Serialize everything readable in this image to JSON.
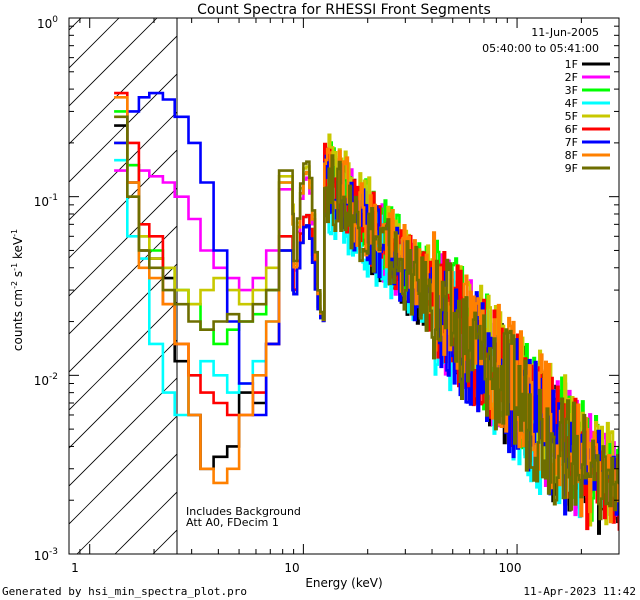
{
  "chart_data": {
    "type": "line",
    "title": "Count Spectra for RHESSI Front Segments",
    "xlabel": "Energy (keV)",
    "ylabel_main": "counts cm",
    "ylabel_exp1": "-2",
    "ylabel_mid": " s",
    "ylabel_exp2": "-1",
    "ylabel_end": " keV",
    "ylabel_exp3": "-1",
    "xscale": "log",
    "yscale": "log",
    "xlim": [
      0.8,
      300
    ],
    "ylim": [
      0.001,
      1.0
    ],
    "x_ticks": [
      1,
      10,
      100
    ],
    "x_tick_labels": [
      "1",
      "10",
      "100"
    ],
    "y_ticks": [
      0.001,
      0.01,
      0.1,
      1.0
    ],
    "y_tick_base": "10",
    "y_tick_exps": [
      "-3",
      "-2",
      "-1",
      "0"
    ],
    "hatched_region_max_keV": 3,
    "annotations": {
      "date": "11-Jun-2005",
      "time_range": "05:40:00 to 05:41:00",
      "note1": "Includes Background",
      "note2": "Att A0, FDecim 1"
    },
    "footer_left": "Generated by hsi_min_spectra_plot.pro",
    "footer_right": "11-Apr-2023 11:42",
    "legend_position": "top-right",
    "series": [
      {
        "name": "1F",
        "color": "#000000",
        "low": [
          0.25,
          0.12,
          0.05,
          0.045,
          0.035,
          0.012,
          0.006,
          0.003,
          0.0035,
          0.004,
          0.008,
          0.007,
          0.015,
          0.05,
          0.03,
          0.015,
          0.012
        ],
        "ampl": 0.12,
        "seed": 1
      },
      {
        "name": "2F",
        "color": "#ff00ff",
        "low": [
          0.14,
          0.15,
          0.14,
          0.13,
          0.12,
          0.1,
          0.075,
          0.05,
          0.04,
          0.035,
          0.03,
          0.035,
          0.05,
          0.11,
          0.08,
          0.04,
          0.02
        ],
        "ampl": 0.13,
        "seed": 2
      },
      {
        "name": "3F",
        "color": "#00ff00",
        "low": [
          0.3,
          0.15,
          0.06,
          0.05,
          0.04,
          0.03,
          0.025,
          0.018,
          0.015,
          0.018,
          0.02,
          0.022,
          0.03,
          0.12,
          0.07,
          0.03,
          0.02
        ],
        "ampl": 0.14,
        "seed": 3
      },
      {
        "name": "4F",
        "color": "#00ffff",
        "low": [
          0.16,
          0.06,
          0.045,
          0.015,
          0.008,
          0.006,
          0.01,
          0.012,
          0.01,
          0.008,
          0.009,
          0.012,
          0.02,
          0.06,
          0.04,
          0.02,
          0.015
        ],
        "ampl": 0.11,
        "seed": 4
      },
      {
        "name": "5F",
        "color": "#c8c800",
        "low": [
          0.2,
          0.1,
          0.06,
          0.045,
          0.04,
          0.03,
          0.025,
          0.03,
          0.035,
          0.03,
          0.025,
          0.03,
          0.04,
          0.13,
          0.09,
          0.04,
          0.025
        ],
        "ampl": 0.15,
        "seed": 5
      },
      {
        "name": "6F",
        "color": "#ff0000",
        "low": [
          0.38,
          0.2,
          0.07,
          0.06,
          0.025,
          0.015,
          0.01,
          0.008,
          0.007,
          0.006,
          0.006,
          0.008,
          0.015,
          0.06,
          0.05,
          0.02,
          0.015
        ],
        "ampl": 0.13,
        "seed": 6
      },
      {
        "name": "7F",
        "color": "#0000ff",
        "low": [
          0.2,
          0.3,
          0.36,
          0.38,
          0.35,
          0.28,
          0.2,
          0.12,
          0.05,
          0.02,
          0.009,
          0.006,
          0.015,
          0.05,
          0.03,
          0.015,
          0.012
        ],
        "ampl": 0.12,
        "seed": 7
      },
      {
        "name": "8F",
        "color": "#ff8000",
        "low": [
          0.36,
          0.12,
          0.04,
          0.035,
          0.025,
          0.015,
          0.006,
          0.003,
          0.0025,
          0.003,
          0.006,
          0.01,
          0.02,
          0.12,
          0.07,
          0.025,
          0.012
        ],
        "ampl": 0.14,
        "seed": 8
      },
      {
        "name": "9F",
        "color": "#6e6e00",
        "low": [
          0.28,
          0.1,
          0.05,
          0.04,
          0.03,
          0.025,
          0.02,
          0.018,
          0.02,
          0.022,
          0.02,
          0.025,
          0.03,
          0.14,
          0.08,
          0.03,
          0.015
        ],
        "ampl": 0.12,
        "seed": 9
      }
    ]
  }
}
